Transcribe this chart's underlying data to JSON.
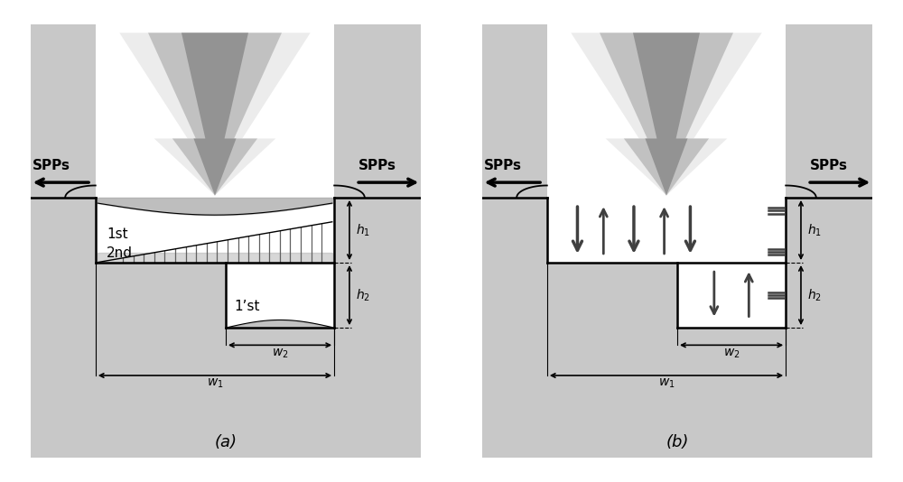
{
  "background_color": "#ffffff",
  "metal_face": "#c8c8c8",
  "metal_hatch": "#888888",
  "groove_white": "#ffffff",
  "label_a": "(a)",
  "label_b": "(b)",
  "spps_label": "SPPs",
  "first_order_label": "1st",
  "second_order_label": "2nd",
  "first_prime_label": "1’st",
  "beam_color_light": "#e0e0e0",
  "beam_color_mid": "#b0b0b0",
  "beam_color_dark": "#888888",
  "arrow_dark": "#404040",
  "dim_line_color": "#000000",
  "surf_curve_color": "#909090"
}
